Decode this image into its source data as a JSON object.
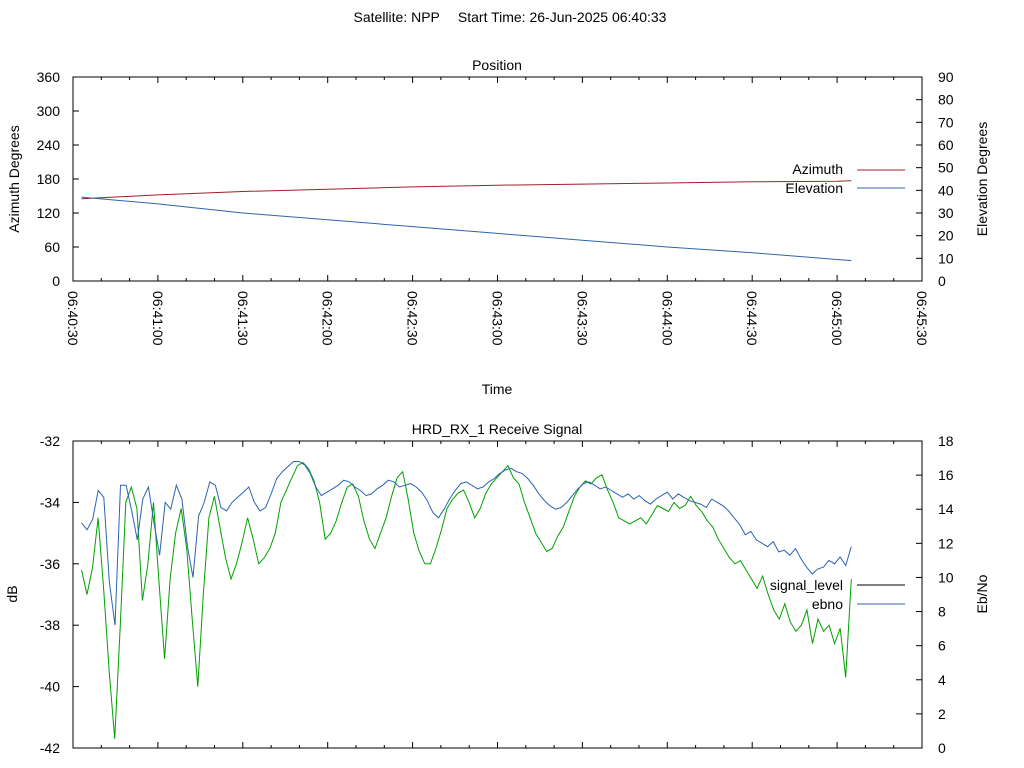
{
  "header": {
    "satellite_label": "Satellite: NPP",
    "start_time_label": "Start Time: 26-Jun-2025 06:40:33"
  },
  "colors": {
    "azimuth": "#a0202a",
    "elevation": "#2c64b0",
    "signal_level": "#00a000",
    "signal_level_legend": "#000000",
    "ebno": "#2c64b0",
    "axes": "#000000"
  },
  "chart_data": [
    {
      "type": "line",
      "title": "Position",
      "xlabel": "Time",
      "ylabel": "Azimuth Degrees",
      "y2label": "Elevation Degrees",
      "x_ticks": [
        "06:40:30",
        "06:41:00",
        "06:41:30",
        "06:42:00",
        "06:42:30",
        "06:43:00",
        "06:43:30",
        "06:44:00",
        "06:44:30",
        "06:45:00",
        "06:45:30"
      ],
      "xlim": [
        "06:40:30",
        "06:45:30"
      ],
      "ylim": [
        0,
        360
      ],
      "y_ticks": [
        0,
        60,
        120,
        180,
        240,
        300,
        360
      ],
      "y2lim": [
        0,
        90
      ],
      "y2_ticks": [
        0,
        10,
        20,
        30,
        40,
        50,
        60,
        70,
        80,
        90
      ],
      "legend_position": "right",
      "grid": false,
      "series": [
        {
          "name": "Azimuth",
          "axis": "y1",
          "x": [
            "06:40:33",
            "06:41:00",
            "06:41:30",
            "06:42:00",
            "06:42:30",
            "06:43:00",
            "06:43:30",
            "06:44:00",
            "06:44:30",
            "06:45:00",
            "06:45:05"
          ],
          "y": [
            145,
            152,
            158,
            162,
            166,
            169,
            171,
            173,
            175,
            176,
            177
          ]
        },
        {
          "name": "Elevation",
          "axis": "y2",
          "x": [
            "06:40:33",
            "06:41:00",
            "06:41:30",
            "06:42:00",
            "06:42:30",
            "06:43:00",
            "06:43:30",
            "06:44:00",
            "06:44:30",
            "06:45:00",
            "06:45:05"
          ],
          "y": [
            37,
            34,
            30,
            27,
            24,
            21,
            18,
            15,
            12.5,
            9.5,
            9
          ]
        }
      ]
    },
    {
      "type": "line",
      "title": "HRD_RX_1 Receive Signal",
      "ylabel": "dB",
      "y2label": "Eb/No",
      "xlim": [
        "06:40:30",
        "06:45:30"
      ],
      "ylim": [
        -42,
        -32
      ],
      "y_ticks": [
        -42,
        -40,
        -38,
        -36,
        -34,
        -32
      ],
      "y2lim": [
        0,
        18
      ],
      "y2_ticks": [
        0,
        2,
        4,
        6,
        8,
        10,
        12,
        14,
        16,
        18
      ],
      "legend_position": "right",
      "grid": false,
      "series": [
        {
          "name": "signal_level",
          "axis": "y1",
          "y": [
            -36.2,
            -37.0,
            -36.1,
            -34.5,
            -36.8,
            -39.5,
            -41.7,
            -38.0,
            -34.0,
            -33.5,
            -34.2,
            -37.2,
            -36.0,
            -34.0,
            -36.6,
            -39.1,
            -36.5,
            -35.0,
            -34.2,
            -35.5,
            -37.8,
            -40.0,
            -37.0,
            -34.5,
            -33.8,
            -34.8,
            -35.8,
            -36.5,
            -36.0,
            -35.3,
            -34.5,
            -35.2,
            -36.0,
            -35.8,
            -35.5,
            -35.0,
            -34.0,
            -33.6,
            -33.2,
            -32.8,
            -32.7,
            -32.9,
            -33.3,
            -34.0,
            -35.2,
            -35.0,
            -34.6,
            -34.0,
            -33.5,
            -33.4,
            -33.8,
            -34.6,
            -35.2,
            -35.5,
            -35.0,
            -34.5,
            -33.8,
            -33.2,
            -33.0,
            -33.9,
            -35.0,
            -35.6,
            -36.0,
            -36.0,
            -35.5,
            -34.9,
            -34.2,
            -33.9,
            -33.7,
            -33.6,
            -34.0,
            -34.5,
            -34.2,
            -33.7,
            -33.4,
            -33.2,
            -33.0,
            -32.8,
            -33.2,
            -33.4,
            -34.0,
            -34.5,
            -35.0,
            -35.3,
            -35.6,
            -35.5,
            -35.1,
            -34.8,
            -34.3,
            -33.8,
            -33.5,
            -33.3,
            -33.4,
            -33.2,
            -33.1,
            -33.6,
            -34.0,
            -34.5,
            -34.6,
            -34.7,
            -34.6,
            -34.5,
            -34.7,
            -34.4,
            -34.1,
            -34.2,
            -34.3,
            -34.0,
            -34.2,
            -34.1,
            -33.8,
            -34.1,
            -34.3,
            -34.6,
            -34.8,
            -35.2,
            -35.5,
            -35.8,
            -36.0,
            -35.9,
            -36.2,
            -36.5,
            -36.8,
            -36.4,
            -37.0,
            -37.5,
            -37.8,
            -37.3,
            -37.9,
            -38.2,
            -38.0,
            -37.5,
            -38.6,
            -37.8,
            -38.2,
            -38.0,
            -38.6,
            -38.1,
            -39.7,
            -36.5
          ]
        },
        {
          "name": "ebno",
          "axis": "y2",
          "y": [
            13.2,
            12.8,
            13.4,
            15.1,
            14.7,
            9.7,
            7.2,
            15.4,
            15.4,
            13.9,
            12.2,
            14.6,
            15.3,
            13.2,
            11.3,
            14.4,
            14.0,
            15.4,
            14.6,
            11.8,
            10.0,
            13.6,
            14.4,
            15.6,
            15.4,
            14.1,
            13.9,
            14.4,
            14.7,
            15.0,
            15.3,
            14.4,
            13.9,
            14.1,
            14.9,
            15.8,
            16.2,
            16.5,
            16.8,
            16.8,
            16.6,
            16.1,
            15.3,
            14.8,
            15.0,
            15.2,
            15.4,
            15.7,
            15.6,
            15.3,
            15.1,
            14.8,
            14.9,
            15.2,
            15.4,
            15.7,
            15.6,
            15.3,
            15.4,
            15.5,
            15.3,
            15.0,
            14.5,
            13.8,
            13.5,
            14.0,
            14.6,
            15.1,
            15.5,
            15.6,
            15.4,
            15.2,
            15.3,
            15.6,
            15.8,
            16.1,
            16.3,
            16.4,
            16.2,
            16.1,
            15.8,
            15.4,
            14.9,
            14.5,
            14.2,
            14.0,
            14.1,
            14.4,
            14.8,
            15.2,
            15.5,
            15.6,
            15.4,
            15.2,
            15.3,
            15.1,
            14.9,
            14.7,
            14.9,
            14.6,
            14.8,
            14.5,
            14.3,
            14.6,
            14.8,
            15.0,
            14.6,
            14.9,
            14.7,
            14.5,
            14.4,
            14.3,
            14.1,
            14.6,
            14.4,
            14.2,
            13.9,
            13.5,
            13.1,
            12.5,
            12.7,
            12.2,
            12.0,
            11.8,
            12.1,
            11.5,
            11.6,
            11.3,
            11.7,
            11.1,
            10.6,
            10.2,
            10.5,
            10.6,
            11.0,
            10.8,
            11.2,
            10.7,
            11.8
          ]
        }
      ]
    }
  ]
}
